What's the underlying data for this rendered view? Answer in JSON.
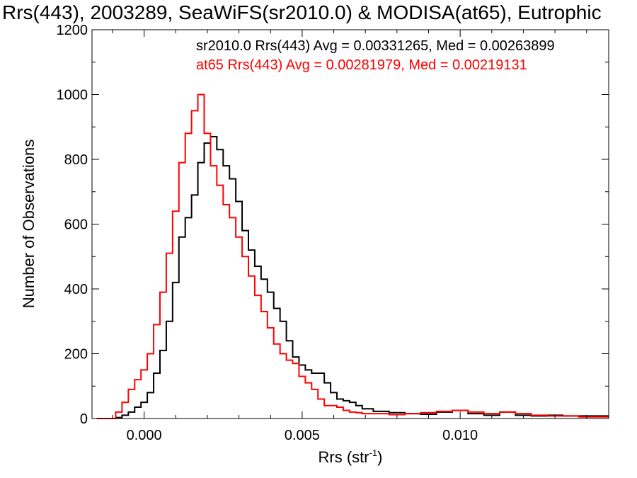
{
  "chart_data": {
    "type": "line",
    "title": "Rrs(443), 2003289, SeaWiFS(sr2010.0) & MODISA(at65), Eutrophic",
    "xlabel": "Rrs (str",
    "xlabel_sup": "-1",
    "xlabel_end": ")",
    "ylabel": "Number of Observations",
    "xlim": [
      -0.00165,
      0.0147
    ],
    "ylim": [
      0,
      1200
    ],
    "xticks": [
      0.0,
      0.005,
      0.01
    ],
    "xtick_labels": [
      "0.000",
      "0.005",
      "0.010"
    ],
    "yticks": [
      0,
      200,
      400,
      600,
      800,
      1000,
      1200
    ],
    "ytick_labels": [
      "0",
      "200",
      "400",
      "600",
      "800",
      "1000",
      "1200"
    ],
    "grid": false,
    "legend_placement": "top-right",
    "annotations": [
      "sr2010.0 Rrs(443) Avg = 0.00331265, Med = 0.00263899",
      "at65 Rrs(443) Avg = 0.00281979, Med = 0.00219131"
    ],
    "series": [
      {
        "name": "sr2010.0",
        "color": "#000000",
        "step": "mid",
        "x": [
          -0.0015,
          -0.001,
          -0.0008,
          -0.0006,
          -0.0004,
          -0.0002,
          0.0,
          0.0002,
          0.0004,
          0.0006,
          0.0008,
          0.001,
          0.0012,
          0.0014,
          0.0016,
          0.0018,
          0.002,
          0.0022,
          0.0024,
          0.0026,
          0.0028,
          0.003,
          0.0032,
          0.0034,
          0.0036,
          0.0038,
          0.004,
          0.0042,
          0.0044,
          0.0046,
          0.0048,
          0.005,
          0.0052,
          0.0054,
          0.0056,
          0.0058,
          0.006,
          0.0062,
          0.0064,
          0.0066,
          0.0068,
          0.007,
          0.0075,
          0.008,
          0.0085,
          0.009,
          0.0095,
          0.01,
          0.0105,
          0.011,
          0.0115,
          0.012,
          0.0125,
          0.013,
          0.0135,
          0.014,
          0.0145
        ],
        "values": [
          0,
          0,
          3,
          10,
          20,
          35,
          50,
          80,
          140,
          210,
          300,
          420,
          560,
          620,
          690,
          790,
          850,
          870,
          830,
          780,
          740,
          670,
          580,
          520,
          470,
          430,
          390,
          340,
          300,
          240,
          190,
          165,
          150,
          140,
          140,
          110,
          80,
          60,
          55,
          50,
          40,
          30,
          22,
          18,
          15,
          13,
          20,
          25,
          15,
          10,
          20,
          10,
          8,
          10,
          8,
          8,
          8
        ]
      },
      {
        "name": "at65",
        "color": "#ff0000",
        "step": "mid",
        "x": [
          -0.0015,
          -0.001,
          -0.0008,
          -0.0006,
          -0.0004,
          -0.0002,
          0.0,
          0.0002,
          0.0004,
          0.0006,
          0.0008,
          0.001,
          0.0012,
          0.0014,
          0.0016,
          0.0018,
          0.002,
          0.0022,
          0.0024,
          0.0026,
          0.0028,
          0.003,
          0.0032,
          0.0034,
          0.0036,
          0.0038,
          0.004,
          0.0042,
          0.0044,
          0.0046,
          0.0048,
          0.005,
          0.0052,
          0.0054,
          0.0056,
          0.0058,
          0.006,
          0.0062,
          0.0064,
          0.0066,
          0.0068,
          0.007,
          0.0075,
          0.008,
          0.0085,
          0.009,
          0.0095,
          0.01,
          0.0105,
          0.011,
          0.0115,
          0.012,
          0.0125,
          0.013,
          0.0135,
          0.014,
          0.0145
        ],
        "values": [
          0,
          0,
          20,
          50,
          90,
          120,
          150,
          200,
          290,
          390,
          510,
          640,
          790,
          880,
          950,
          1000,
          880,
          780,
          720,
          660,
          620,
          560,
          500,
          440,
          380,
          330,
          280,
          230,
          200,
          180,
          170,
          130,
          110,
          90,
          60,
          40,
          40,
          35,
          25,
          20,
          18,
          15,
          15,
          12,
          15,
          18,
          22,
          25,
          20,
          15,
          20,
          15,
          10,
          8,
          8,
          5,
          5
        ]
      }
    ]
  }
}
